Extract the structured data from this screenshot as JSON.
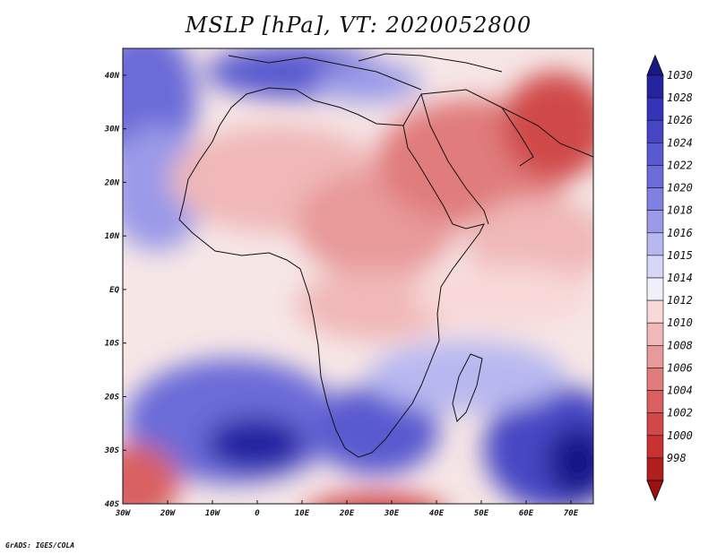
{
  "title": "MSLP [hPa], VT: 2020052800",
  "footer": "GrADS: IGES/COLA",
  "map": {
    "lon_range": [
      -30,
      75
    ],
    "lat_range": [
      -40,
      45
    ],
    "x_ticks": [
      {
        "lon": -30,
        "label": "30W"
      },
      {
        "lon": -20,
        "label": "20W"
      },
      {
        "lon": -10,
        "label": "10W"
      },
      {
        "lon": 0,
        "label": "0"
      },
      {
        "lon": 10,
        "label": "10E"
      },
      {
        "lon": 20,
        "label": "20E"
      },
      {
        "lon": 30,
        "label": "30E"
      },
      {
        "lon": 40,
        "label": "40E"
      },
      {
        "lon": 50,
        "label": "50E"
      },
      {
        "lon": 60,
        "label": "60E"
      },
      {
        "lon": 70,
        "label": "70E"
      }
    ],
    "y_ticks": [
      {
        "lat": 40,
        "label": "40N"
      },
      {
        "lat": 30,
        "label": "30N"
      },
      {
        "lat": 20,
        "label": "20N"
      },
      {
        "lat": 10,
        "label": "10N"
      },
      {
        "lat": 0,
        "label": "EQ"
      },
      {
        "lat": -10,
        "label": "10S"
      },
      {
        "lat": -20,
        "label": "20S"
      },
      {
        "lat": -30,
        "label": "30S"
      },
      {
        "lat": -40,
        "label": "40S"
      }
    ]
  },
  "colorbar": {
    "labels": [
      "1030",
      "1028",
      "1026",
      "1024",
      "1022",
      "1020",
      "1018",
      "1016",
      "1015",
      "1014",
      "1012",
      "1010",
      "1008",
      "1006",
      "1004",
      "1002",
      "1000",
      "998"
    ],
    "colors": [
      "#2424a0",
      "#3434b8",
      "#4646c4",
      "#5a5ad0",
      "#6c6cd8",
      "#8080e0",
      "#9a9ae8",
      "#b8b8f0",
      "#d6d6f6",
      "#f0f0fb",
      "#f8d8d8",
      "#f0b8b8",
      "#e89a9a",
      "#e07c7c",
      "#d86060",
      "#d04848",
      "#c83232",
      "#b01e1e"
    ],
    "max_color": "#181888",
    "min_color": "#a01010"
  }
}
